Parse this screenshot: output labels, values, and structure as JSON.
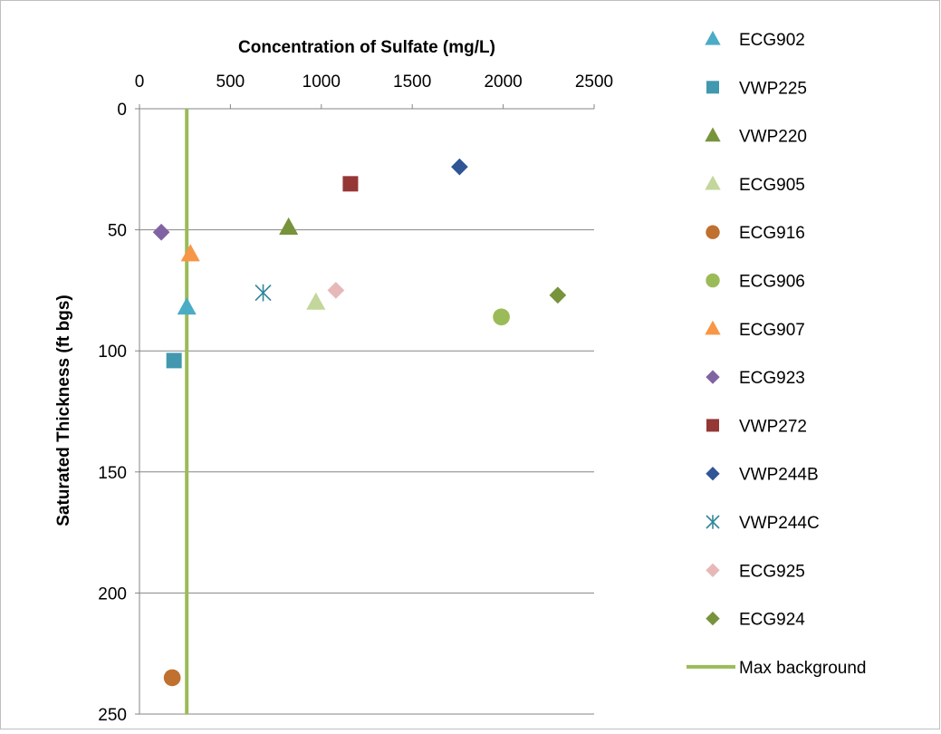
{
  "chart_data": {
    "type": "scatter",
    "title": "",
    "xlabel": "Concentration of Sulfate (mg/L)",
    "ylabel": "Saturated Thickness (ft bgs)",
    "xlim": [
      0,
      2500
    ],
    "ylim": [
      0,
      250
    ],
    "y_inverted": true,
    "x_axis_position": "top",
    "x_ticks": [
      0,
      500,
      1000,
      1500,
      2000,
      2500
    ],
    "y_ticks": [
      0,
      50,
      100,
      150,
      200,
      250
    ],
    "grid": "horizontal",
    "legend_position": "right",
    "series": [
      {
        "name": "ECG902",
        "marker": "triangle",
        "color": "#4BACC6",
        "x": 260,
        "y": 82
      },
      {
        "name": "VWP225",
        "marker": "square",
        "color": "#4198AF",
        "x": 190,
        "y": 104
      },
      {
        "name": "VWP220",
        "marker": "triangle",
        "color": "#77933C",
        "x": 820,
        "y": 49
      },
      {
        "name": "ECG905",
        "marker": "triangle",
        "color": "#C3D69B",
        "x": 970,
        "y": 80
      },
      {
        "name": "ECG916",
        "marker": "circle",
        "color": "#C0702F",
        "x": 180,
        "y": 235
      },
      {
        "name": "ECG906",
        "marker": "circle",
        "color": "#9BBB59",
        "x": 1990,
        "y": 86
      },
      {
        "name": "ECG907",
        "marker": "triangle",
        "color": "#F79646",
        "x": 280,
        "y": 60
      },
      {
        "name": "ECG923",
        "marker": "diamond",
        "color": "#8064A2",
        "x": 120,
        "y": 51
      },
      {
        "name": "VWP272",
        "marker": "square",
        "color": "#953735",
        "x": 1160,
        "y": 31
      },
      {
        "name": "VWP244B",
        "marker": "diamond",
        "color": "#2F5596",
        "x": 1760,
        "y": 24
      },
      {
        "name": "VWP244C",
        "marker": "star",
        "color": "#31859C",
        "x": 680,
        "y": 76
      },
      {
        "name": "ECG925",
        "marker": "diamond",
        "color": "#E6B9B8",
        "x": 1080,
        "y": 75
      },
      {
        "name": "ECG924",
        "marker": "diamond",
        "color": "#77933C",
        "x": 2300,
        "y": 77
      }
    ],
    "reference_line": {
      "name": "Max background",
      "color": "#9BBB59",
      "x": 260,
      "orientation": "vertical"
    }
  }
}
